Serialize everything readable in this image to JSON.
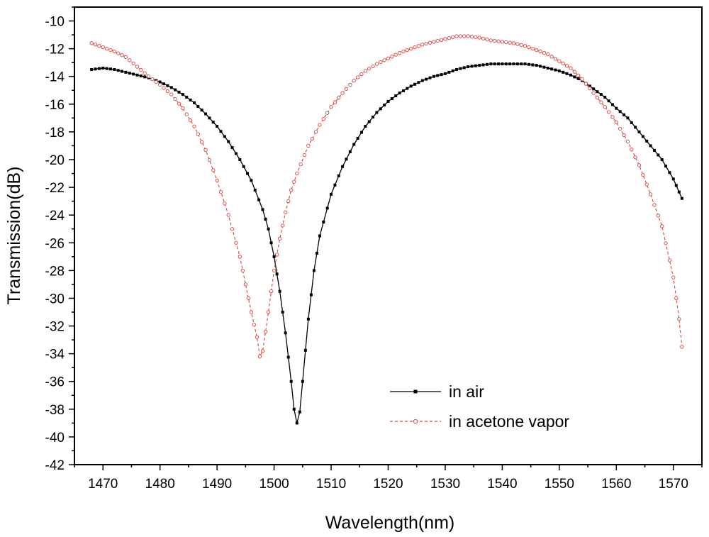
{
  "chart_data": {
    "type": "line",
    "xlabel": "Wavelength(nm)",
    "ylabel": "Transmission(dB)",
    "xlim": [
      1465,
      1575
    ],
    "ylim": [
      -42,
      -9
    ],
    "x_ticks": [
      1470,
      1480,
      1490,
      1500,
      1510,
      1520,
      1530,
      1540,
      1550,
      1560,
      1570
    ],
    "y_ticks": [
      -42,
      -40,
      -38,
      -36,
      -34,
      -32,
      -30,
      -28,
      -26,
      -24,
      -22,
      -20,
      -18,
      -16,
      -14,
      -12,
      -10
    ],
    "grid": false,
    "legend_position": "lower-right",
    "series": [
      {
        "name": "in air",
        "color": "#000000",
        "line_style": "solid",
        "marker": "filled-square",
        "x": [
          1468,
          1470,
          1472,
          1474,
          1476,
          1478,
          1480,
          1482,
          1484,
          1486,
          1488,
          1490,
          1492,
          1494,
          1496,
          1498,
          1499,
          1500,
          1501,
          1502,
          1503,
          1503.5,
          1504,
          1504.5,
          1505,
          1506,
          1507,
          1508,
          1510,
          1512,
          1514,
          1516,
          1518,
          1520,
          1522,
          1524,
          1526,
          1528,
          1530,
          1532,
          1534,
          1536,
          1538,
          1540,
          1542,
          1544,
          1546,
          1548,
          1550,
          1552,
          1554,
          1556,
          1558,
          1560,
          1562,
          1564,
          1566,
          1568,
          1570,
          1571.5
        ],
        "y": [
          -13.5,
          -13.4,
          -13.5,
          -13.7,
          -13.9,
          -14.1,
          -14.4,
          -14.8,
          -15.3,
          -15.9,
          -16.7,
          -17.6,
          -18.7,
          -20.0,
          -21.5,
          -23.6,
          -25.0,
          -27.0,
          -29.5,
          -32.5,
          -36.0,
          -38.0,
          -39.0,
          -38.2,
          -36.0,
          -31.5,
          -28.0,
          -25.5,
          -22.5,
          -20.5,
          -18.9,
          -17.6,
          -16.6,
          -15.8,
          -15.2,
          -14.7,
          -14.3,
          -14.0,
          -13.8,
          -13.5,
          -13.3,
          -13.2,
          -13.1,
          -13.1,
          -13.1,
          -13.1,
          -13.2,
          -13.4,
          -13.6,
          -13.9,
          -14.3,
          -14.9,
          -15.5,
          -16.3,
          -17.0,
          -18.0,
          -19.0,
          -20.0,
          -21.4,
          -22.8
        ]
      },
      {
        "name": "in acetone vapor",
        "color": "#d6433f",
        "line_style": "dashed",
        "marker": "open-circle",
        "x": [
          1468,
          1470,
          1472,
          1474,
          1476,
          1478,
          1480,
          1482,
          1484,
          1486,
          1488,
          1490,
          1492,
          1494,
          1495,
          1496,
          1497,
          1497.5,
          1498,
          1499,
          1500,
          1501,
          1502,
          1503,
          1504,
          1506,
          1508,
          1510,
          1512,
          1514,
          1516,
          1518,
          1520,
          1522,
          1524,
          1526,
          1528,
          1530,
          1532,
          1534,
          1536,
          1538,
          1540,
          1542,
          1544,
          1546,
          1548,
          1550,
          1552,
          1554,
          1556,
          1558,
          1560,
          1562,
          1564,
          1566,
          1568,
          1570,
          1571,
          1571.5
        ],
        "y": [
          -11.6,
          -11.9,
          -12.2,
          -12.6,
          -13.3,
          -14.0,
          -14.6,
          -15.3,
          -16.3,
          -17.6,
          -19.3,
          -21.5,
          -24.0,
          -27.0,
          -29.0,
          -31.0,
          -32.8,
          -34.2,
          -33.8,
          -31.0,
          -28.0,
          -25.7,
          -23.8,
          -22.2,
          -21.0,
          -19.0,
          -17.5,
          -16.2,
          -15.2,
          -14.3,
          -13.6,
          -13.1,
          -12.7,
          -12.3,
          -12.0,
          -11.7,
          -11.5,
          -11.3,
          -11.1,
          -11.1,
          -11.2,
          -11.4,
          -11.5,
          -11.6,
          -11.8,
          -12.1,
          -12.4,
          -12.9,
          -13.4,
          -14.2,
          -15.2,
          -16.2,
          -17.3,
          -18.7,
          -20.4,
          -22.5,
          -24.8,
          -28.5,
          -31.5,
          -33.5
        ]
      }
    ]
  }
}
